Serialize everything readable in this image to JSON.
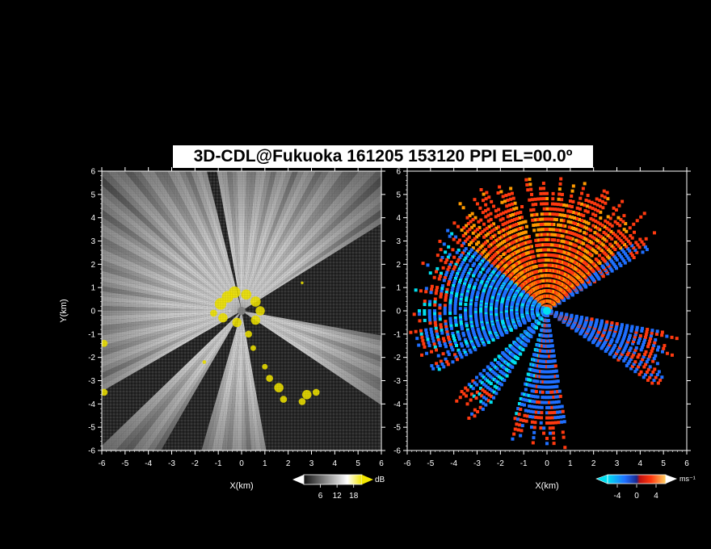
{
  "title": "3D-CDL@Fukuoka 161205 153120 PPI EL=00.0º",
  "colors": {
    "background": "#000000",
    "refl_echo": "#f2e600",
    "vel_neg_strong": "#00e0f0",
    "vel_neg": "#1f6fff",
    "vel_pos": "#ff3a10",
    "vel_pos_strong": "#ff9a00"
  },
  "chart_data": [
    {
      "type": "heatmap",
      "name": "reflectivity_ppi",
      "xlabel": "X(km)",
      "ylabel": "Y(km)",
      "xlim": [
        -6,
        6
      ],
      "ylim": [
        -6,
        6
      ],
      "x_ticks": [
        "-6",
        "-5",
        "-4",
        "-3",
        "-2",
        "-1",
        "0",
        "1",
        "2",
        "3",
        "4",
        "5",
        "6"
      ],
      "y_ticks": [
        "6",
        "5",
        "4",
        "3",
        "2",
        "1",
        "0",
        "-1",
        "-2",
        "-3",
        "-4",
        "-5",
        "-6"
      ],
      "colorbar": {
        "unit": "dB",
        "ticks": [
          "6",
          "12",
          "18"
        ],
        "range": [
          0,
          21
        ]
      },
      "blocked_sectors_deg": [
        [
          -80,
          -35
        ],
        [
          210,
          222
        ],
        [
          240,
          252
        ],
        [
          100,
          102
        ],
        [
          -10,
          30
        ]
      ],
      "echo_note": "yellow strong echo near radar origin and along the southeast/southwest edges"
    },
    {
      "type": "heatmap",
      "name": "doppler_velocity_ppi",
      "xlabel": "X(km)",
      "ylabel": "",
      "xlim": [
        -6,
        6
      ],
      "ylim": [
        -6,
        6
      ],
      "x_ticks": [
        "-6",
        "-5",
        "-4",
        "-3",
        "-2",
        "-1",
        "0",
        "1",
        "2",
        "3",
        "4",
        "5",
        "6"
      ],
      "y_ticks": [
        "6",
        "5",
        "4",
        "3",
        "2",
        "1",
        "0",
        "-1",
        "-2",
        "-3",
        "-4",
        "-5",
        "-6"
      ],
      "colorbar": {
        "unit": "ms⁻¹",
        "ticks": [
          "-4",
          "0",
          "4"
        ],
        "range": [
          -6,
          6
        ]
      },
      "pattern": "receding (red/orange) flow to the north, approaching (blue/cyan) flow to the south and west"
    }
  ]
}
